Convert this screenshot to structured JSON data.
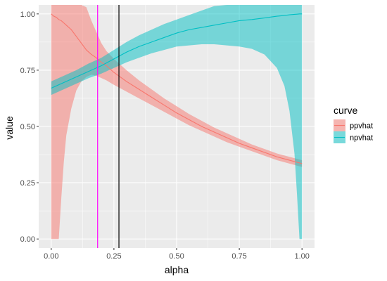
{
  "chart_data": {
    "type": "line",
    "xlabel": "alpha",
    "ylabel": "value",
    "xlim": [
      -0.05,
      1.05
    ],
    "ylim": [
      -0.04,
      1.04
    ],
    "x_ticks": [
      0.0,
      0.25,
      0.5,
      0.75,
      1.0
    ],
    "x_tick_labels": [
      "0.00",
      "0.25",
      "0.50",
      "0.75",
      "1.00"
    ],
    "y_ticks": [
      0.0,
      0.25,
      0.5,
      0.75,
      1.0
    ],
    "y_tick_labels": [
      "0.00",
      "0.25",
      "0.50",
      "0.75",
      "1.00"
    ],
    "grid": true,
    "background": "#ebebeb",
    "legend": {
      "title": "curve",
      "position": "right",
      "entries": [
        {
          "label": "ppvhat",
          "color": "#F8766D"
        },
        {
          "label": "npvhat",
          "color": "#00BFC4"
        }
      ]
    },
    "series": [
      {
        "name": "ppvhat",
        "color": "#F8766D",
        "x": [
          0,
          0.01,
          0.02,
          0.03,
          0.04,
          0.05,
          0.06,
          0.08,
          0.1,
          0.12,
          0.14,
          0.16,
          0.18,
          0.2,
          0.22,
          0.25,
          0.3,
          0.35,
          0.4,
          0.45,
          0.5,
          0.55,
          0.6,
          0.65,
          0.7,
          0.75,
          0.8,
          0.85,
          0.9,
          0.95,
          1.0
        ],
        "y": [
          1.0,
          0.99,
          0.985,
          0.975,
          0.97,
          0.96,
          0.95,
          0.93,
          0.9,
          0.87,
          0.84,
          0.82,
          0.805,
          0.785,
          0.77,
          0.74,
          0.7,
          0.665,
          0.63,
          0.595,
          0.56,
          0.53,
          0.5,
          0.475,
          0.45,
          0.425,
          0.405,
          0.385,
          0.365,
          0.35,
          0.335
        ],
        "lower": [
          0.0,
          0.0,
          0.0,
          0.0,
          0.18,
          0.34,
          0.46,
          0.58,
          0.66,
          0.7,
          0.72,
          0.73,
          0.725,
          0.715,
          0.705,
          0.685,
          0.655,
          0.625,
          0.595,
          0.565,
          0.535,
          0.505,
          0.48,
          0.455,
          0.43,
          0.41,
          0.39,
          0.37,
          0.35,
          0.335,
          0.32
        ],
        "upper": [
          1.04,
          1.04,
          1.04,
          1.04,
          1.04,
          1.04,
          1.04,
          1.04,
          1.04,
          1.04,
          1.03,
          0.97,
          0.92,
          0.87,
          0.835,
          0.8,
          0.75,
          0.705,
          0.665,
          0.625,
          0.59,
          0.555,
          0.525,
          0.495,
          0.47,
          0.445,
          0.42,
          0.4,
          0.38,
          0.365,
          0.35
        ]
      },
      {
        "name": "npvhat",
        "color": "#00BFC4",
        "x": [
          0,
          0.05,
          0.1,
          0.15,
          0.2,
          0.25,
          0.3,
          0.35,
          0.4,
          0.45,
          0.5,
          0.55,
          0.6,
          0.65,
          0.7,
          0.75,
          0.8,
          0.85,
          0.9,
          0.93,
          0.95,
          0.97,
          0.98,
          0.99,
          1.0
        ],
        "y": [
          0.67,
          0.695,
          0.72,
          0.745,
          0.77,
          0.8,
          0.83,
          0.855,
          0.875,
          0.895,
          0.915,
          0.93,
          0.94,
          0.95,
          0.96,
          0.97,
          0.975,
          0.982,
          0.99,
          0.993,
          0.996,
          0.998,
          0.999,
          1.0,
          1.0
        ],
        "lower": [
          0.64,
          0.665,
          0.69,
          0.715,
          0.735,
          0.76,
          0.785,
          0.805,
          0.825,
          0.84,
          0.855,
          0.86,
          0.865,
          0.865,
          0.86,
          0.855,
          0.845,
          0.82,
          0.76,
          0.68,
          0.57,
          0.38,
          0.2,
          0.0,
          0.0
        ],
        "upper": [
          0.7,
          0.725,
          0.75,
          0.78,
          0.805,
          0.84,
          0.875,
          0.905,
          0.93,
          0.955,
          0.975,
          0.995,
          1.015,
          1.035,
          1.04,
          1.04,
          1.04,
          1.04,
          1.04,
          1.04,
          1.04,
          1.04,
          1.04,
          1.04,
          1.04
        ]
      }
    ],
    "vlines": [
      {
        "x": 0.185,
        "color": "#FF00FF"
      },
      {
        "x": 0.27,
        "color": "#000000"
      }
    ]
  }
}
